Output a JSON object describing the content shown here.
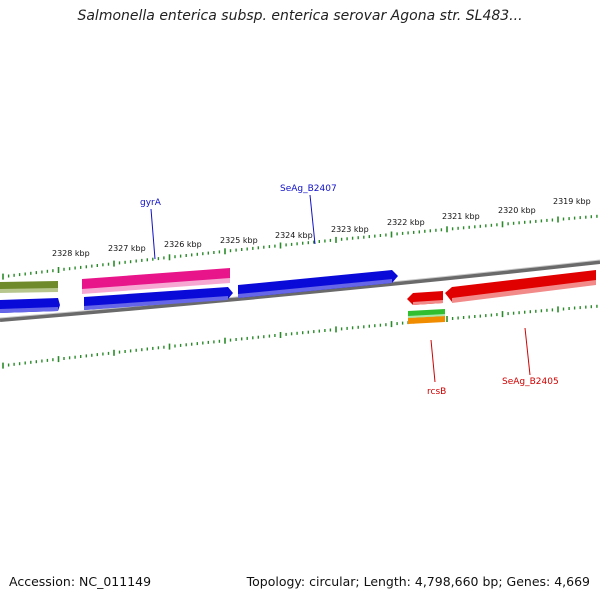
{
  "title": "Salmonella enterica subsp. enterica serovar Agona str. SL483...",
  "footer": {
    "accession": "Accession: NC_011149",
    "summary": "Topology: circular; Length: 4,798,660 bp; Genes: 4,669"
  },
  "colors": {
    "forward_gene": "#0a0ad8",
    "reverse_gene": "#e00000",
    "pink_gene": "#e8158a",
    "tick": "#2a8a2a",
    "backbone": "#7a7a7a"
  },
  "scale": {
    "tick_labels": [
      "2319 kbp",
      "2320 kbp",
      "2321 kbp",
      "2322 kbp",
      "2323 kbp",
      "2324 kbp",
      "2325 kbp",
      "2326 kbp",
      "2327 kbp",
      "2328 kbp"
    ]
  },
  "genes": {
    "forward_labels": [
      {
        "label": "gyrA",
        "color": "#1010c8"
      },
      {
        "label": "SeAg_B2407",
        "color": "#1010c8"
      }
    ],
    "reverse_labels": [
      {
        "label": "rcsB",
        "color": "#d00000"
      },
      {
        "label": "SeAg_B2405",
        "color": "#d00000"
      }
    ]
  }
}
